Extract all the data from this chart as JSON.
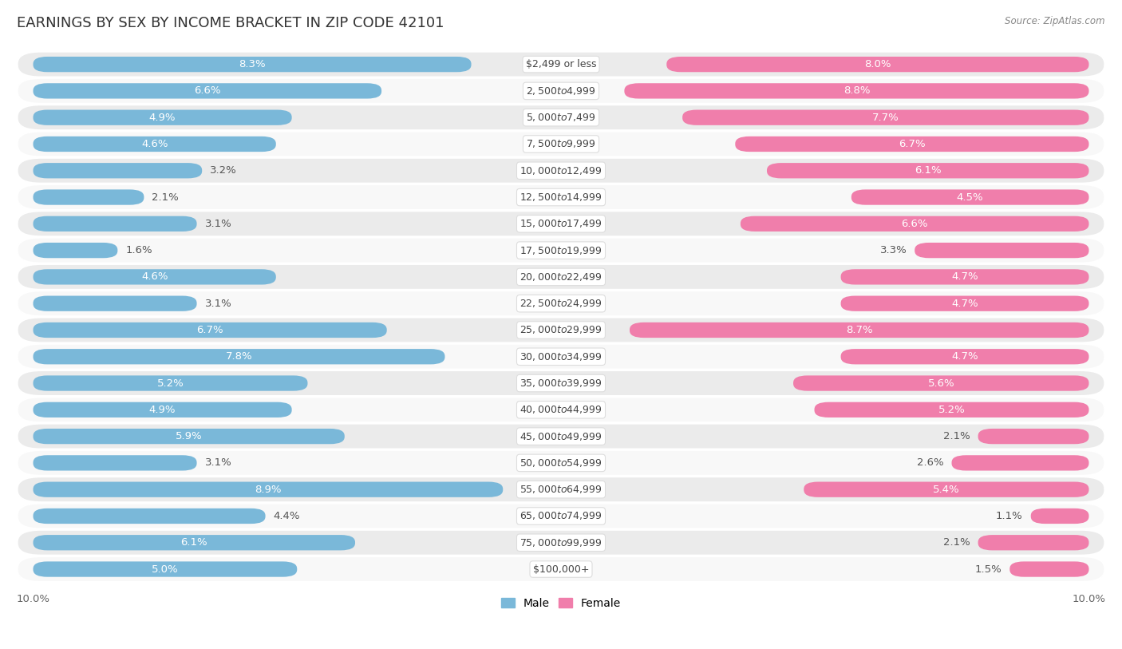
{
  "title": "EARNINGS BY SEX BY INCOME BRACKET IN ZIP CODE 42101",
  "source": "Source: ZipAtlas.com",
  "categories": [
    "$2,499 or less",
    "$2,500 to $4,999",
    "$5,000 to $7,499",
    "$7,500 to $9,999",
    "$10,000 to $12,499",
    "$12,500 to $14,999",
    "$15,000 to $17,499",
    "$17,500 to $19,999",
    "$20,000 to $22,499",
    "$22,500 to $24,999",
    "$25,000 to $29,999",
    "$30,000 to $34,999",
    "$35,000 to $39,999",
    "$40,000 to $44,999",
    "$45,000 to $49,999",
    "$50,000 to $54,999",
    "$55,000 to $64,999",
    "$65,000 to $74,999",
    "$75,000 to $99,999",
    "$100,000+"
  ],
  "male_values": [
    8.3,
    6.6,
    4.9,
    4.6,
    3.2,
    2.1,
    3.1,
    1.6,
    4.6,
    3.1,
    6.7,
    7.8,
    5.2,
    4.9,
    5.9,
    3.1,
    8.9,
    4.4,
    6.1,
    5.0
  ],
  "female_values": [
    8.0,
    8.8,
    7.7,
    6.7,
    6.1,
    4.5,
    6.6,
    3.3,
    4.7,
    4.7,
    8.7,
    4.7,
    5.6,
    5.2,
    2.1,
    2.6,
    5.4,
    1.1,
    2.1,
    1.5
  ],
  "male_color": "#7ab8d9",
  "female_color": "#f07eab",
  "background_color": "#ffffff",
  "row_alt_color": "#ebebeb",
  "row_main_color": "#f8f8f8",
  "axis_max": 10.0,
  "title_fontsize": 13,
  "label_fontsize": 9.5,
  "tick_fontsize": 9.5,
  "legend_fontsize": 10,
  "category_fontsize": 9.0,
  "male_threshold": 4.5,
  "female_threshold": 4.5
}
